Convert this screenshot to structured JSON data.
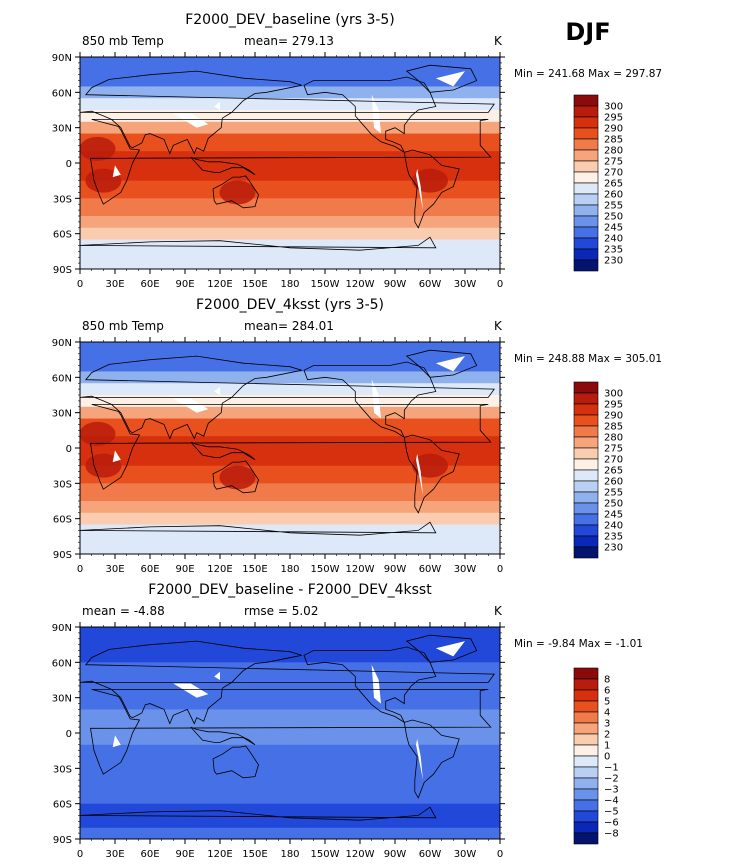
{
  "season": "DJF",
  "lon_ticks": [
    "0",
    "30E",
    "60E",
    "90E",
    "120E",
    "150E",
    "180",
    "150W",
    "120W",
    "90W",
    "60W",
    "30W",
    "0"
  ],
  "lat_ticks": [
    "90N",
    "60N",
    "30N",
    "0",
    "30S",
    "60S",
    "90S"
  ],
  "panels": [
    {
      "title": "F2000_DEV_baseline (yrs 3-5)",
      "left_label": "850 mb Temp",
      "center_label": "mean= 279.13",
      "right_label": "K",
      "minmax": "Min = 241.68 Max = 297.87",
      "palette": "temp"
    },
    {
      "title": "F2000_DEV_4ksst (yrs 3-5)",
      "left_label": "850 mb Temp",
      "center_label": "mean= 284.01",
      "right_label": "K",
      "minmax": "Min = 248.88 Max = 305.01",
      "palette": "temp"
    },
    {
      "title": "F2000_DEV_baseline - F2000_DEV_4ksst",
      "left_label": "mean =   -4.88",
      "center_label": "rmse =    5.02",
      "right_label": "K",
      "minmax": "Min =   -9.84 Max =   -1.01",
      "palette": "diff"
    }
  ],
  "colorbars": {
    "temp": {
      "labels": [
        "300",
        "295",
        "290",
        "285",
        "280",
        "275",
        "270",
        "265",
        "260",
        "255",
        "250",
        "245",
        "240",
        "235",
        "230"
      ],
      "colors": [
        "#8b0a0a",
        "#b81c0c",
        "#d6300f",
        "#e8501e",
        "#f07a4a",
        "#f6a47b",
        "#fbcdb0",
        "#fdf0e6",
        "#dde8f8",
        "#b9d0f4",
        "#8fb1ee",
        "#6a92ea",
        "#4670e6",
        "#2148d8",
        "#0a27b8",
        "#04146e"
      ]
    },
    "diff": {
      "labels": [
        "8",
        "6",
        "5",
        "4",
        "3",
        "2",
        "1",
        "0",
        "−1",
        "−2",
        "−3",
        "−4",
        "−5",
        "−6",
        "−8"
      ],
      "colors": [
        "#8b0a0a",
        "#b81c0c",
        "#d6300f",
        "#e8501e",
        "#f07a4a",
        "#f6a47b",
        "#fbcdb0",
        "#fdf0e6",
        "#dde8f8",
        "#b9d0f4",
        "#8fb1ee",
        "#6a92ea",
        "#4670e6",
        "#2148d8",
        "#0a27b8",
        "#04146e"
      ]
    }
  },
  "chart_data": [
    {
      "type": "heatmap",
      "title": "F2000_DEV_baseline (yrs 3-5)",
      "variable": "850 mb Temp",
      "units": "K",
      "mean": 279.13,
      "min": 241.68,
      "max": 297.87,
      "contour_levels": [
        230,
        235,
        240,
        245,
        250,
        255,
        260,
        265,
        270,
        275,
        280,
        285,
        290,
        295,
        300
      ],
      "xlim": [
        "0",
        "0"
      ],
      "ylim": [
        "90S",
        "90N"
      ]
    },
    {
      "type": "heatmap",
      "title": "F2000_DEV_4ksst (yrs 3-5)",
      "variable": "850 mb Temp",
      "units": "K",
      "mean": 284.01,
      "min": 248.88,
      "max": 305.01,
      "contour_levels": [
        230,
        235,
        240,
        245,
        250,
        255,
        260,
        265,
        270,
        275,
        280,
        285,
        290,
        295,
        300
      ],
      "xlim": [
        "0",
        "0"
      ],
      "ylim": [
        "90S",
        "90N"
      ]
    },
    {
      "type": "heatmap",
      "title": "F2000_DEV_baseline - F2000_DEV_4ksst",
      "units": "K",
      "mean": -4.88,
      "rmse": 5.02,
      "min": -9.84,
      "max": -1.01,
      "contour_levels": [
        -8,
        -6,
        -5,
        -4,
        -3,
        -2,
        -1,
        0,
        1,
        2,
        3,
        4,
        5,
        6,
        8
      ],
      "xlim": [
        "0",
        "0"
      ],
      "ylim": [
        "90S",
        "90N"
      ]
    }
  ]
}
